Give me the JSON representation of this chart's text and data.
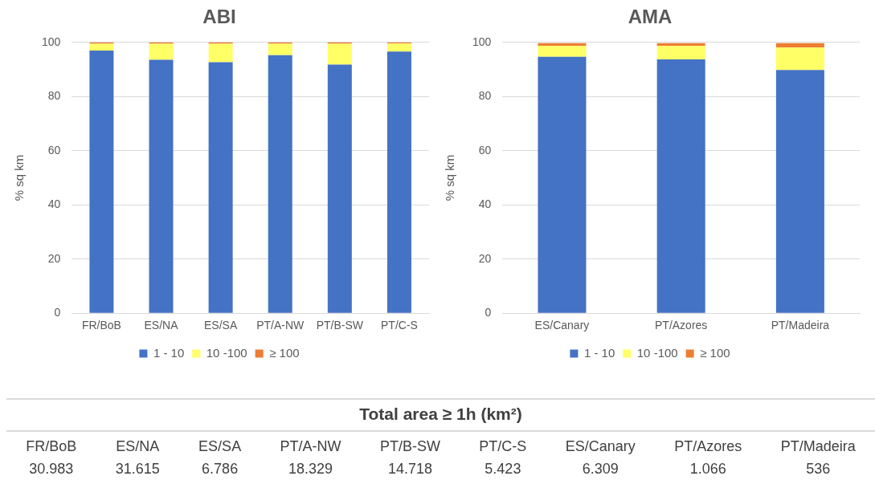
{
  "chart_data": [
    {
      "type": "bar",
      "title": "ABI",
      "ylabel": "% sq km",
      "categories": [
        "FR/BoB",
        "ES/NA",
        "ES/SA",
        "PT/A-NW",
        "PT/B-SW",
        "PT/C-S"
      ],
      "stacked": true,
      "ylim": [
        0,
        100
      ],
      "yticks": [
        0,
        20,
        40,
        60,
        80,
        100
      ],
      "grid": "y",
      "legend": "bottom",
      "series": [
        {
          "name": "1 - 10",
          "color": "#4472c4",
          "values": [
            97.0,
            93.6,
            92.7,
            95.3,
            91.8,
            96.6
          ]
        },
        {
          "name": "10 -100",
          "color": "#ffff66",
          "values": [
            2.5,
            5.9,
            6.8,
            4.2,
            7.7,
            3.0
          ]
        },
        {
          "name": "≥ 100",
          "color": "#ed7d31",
          "values": [
            0.5,
            0.5,
            0.5,
            0.5,
            0.5,
            0.4
          ]
        }
      ]
    },
    {
      "type": "bar",
      "title": "AMA",
      "ylabel": "% sq km",
      "categories": [
        "ES/Canary",
        "PT/Azores",
        "PT/Madeira"
      ],
      "stacked": true,
      "ylim": [
        0,
        100
      ],
      "yticks": [
        0,
        20,
        40,
        60,
        80,
        100
      ],
      "grid": "y",
      "legend": "bottom",
      "series": [
        {
          "name": "1 - 10",
          "color": "#4472c4",
          "values": [
            94.7,
            93.7,
            89.8
          ]
        },
        {
          "name": "10 -100",
          "color": "#ffff66",
          "values": [
            4.0,
            5.0,
            8.3
          ]
        },
        {
          "name": "≥ 100",
          "color": "#ed7d31",
          "values": [
            1.0,
            1.0,
            1.6
          ]
        }
      ]
    },
    {
      "type": "other",
      "title": "Total area ≥ 1h (km²)",
      "categories": [
        "FR/BoB",
        "ES/NA",
        "ES/SA",
        "PT/A-NW",
        "PT/B-SW",
        "PT/C-S",
        "ES/Canary",
        "PT/Azores",
        "PT/Madeira"
      ],
      "annotations": [
        "30.983",
        "31.615",
        "6.786",
        "18.329",
        "14.718",
        "5.423",
        "6.309",
        "1.066",
        "536"
      ]
    }
  ]
}
